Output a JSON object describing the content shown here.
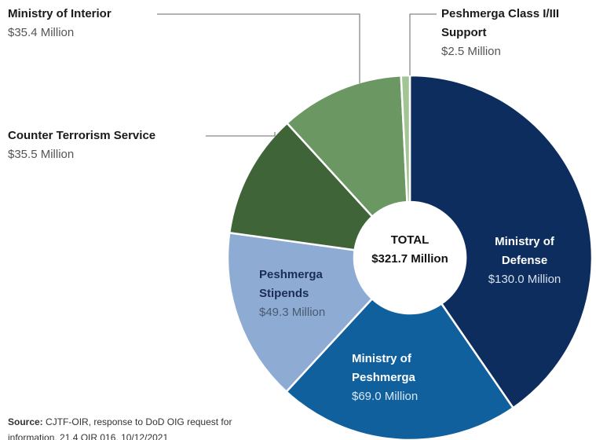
{
  "chart_data": {
    "type": "pie",
    "donut": true,
    "categories": [
      "Ministry of Defense",
      "Ministry of Peshmerga",
      "Peshmerga Stipends",
      "Counter Terrorism Service",
      "Ministry of Interior",
      "Peshmerga Class I/III Support"
    ],
    "values": [
      130.0,
      69.0,
      49.3,
      35.5,
      35.4,
      2.5
    ],
    "value_labels": [
      "$130.0 Million",
      "$69.0 Million",
      "$49.3 Million",
      "$35.5 Million",
      "$35.4 Million",
      "$2.5 Million"
    ],
    "colors": [
      "#0d2d5e",
      "#10609e",
      "#8eabd4",
      "#3e6438",
      "#6b9762",
      "#a3c596"
    ],
    "total_title": "TOTAL",
    "total_label": "$321.7 Million",
    "source_label": "Source:",
    "source": "CJTF-OIR, response to DoD OIG request for information, 21.4 OIR 016, 10/12/2021"
  }
}
